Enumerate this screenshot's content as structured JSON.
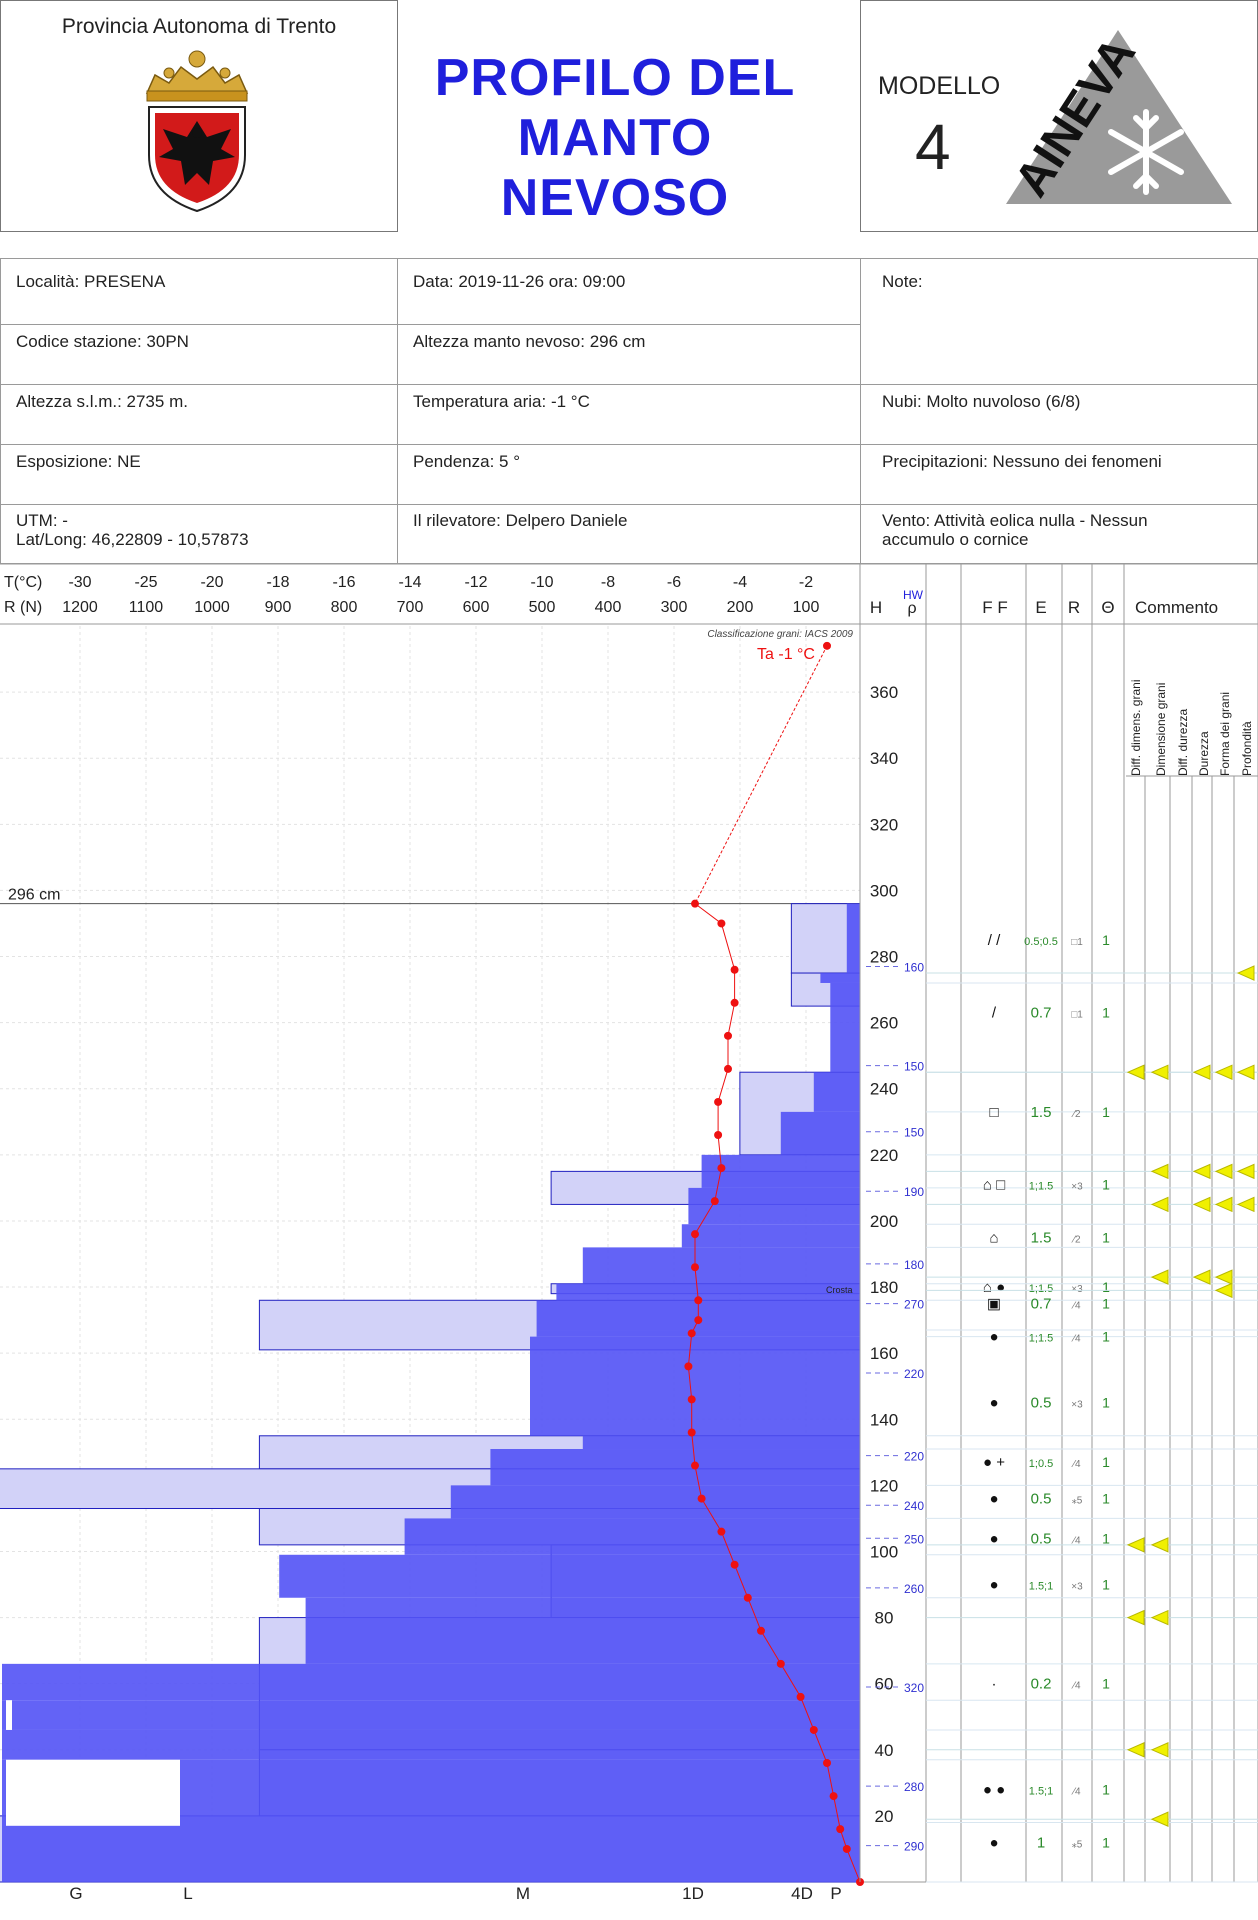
{
  "header": {
    "province": "Provincia Autonoma di Trento",
    "title_line1": "PROFILO DEL",
    "title_line2": "MANTO NEVOSO",
    "model_label": "MODELLO",
    "model_number": "4",
    "logo_text": "AINEVA"
  },
  "info": {
    "location": "Località: PRESENA",
    "date": "Data: 2019-11-26   ora: 09:00",
    "notes": "Note:",
    "station": "Codice stazione: 30PN",
    "snow_depth": "Altezza manto nevoso: 296 cm",
    "altitude": "Altezza s.l.m.: 2735 m.",
    "air_temp": "Temperatura aria: -1 °C",
    "clouds": "Nubi: Molto nuvoloso (6/8)",
    "exposure": "Esposizione: NE",
    "slope": "Pendenza: 5 °",
    "precip": "Precipitazioni: Nessuno dei fenomeni",
    "utm": "UTM:  -",
    "latlong": "Lat/Long: 46,22809 - 10,57873",
    "observer": "Il rilevatore: Delpero Daniele",
    "wind_1": "Vento: Attività eolica nulla - Nessun",
    "wind_2": "accumulo o cornice"
  },
  "columns": {
    "t_label": "T(°C)",
    "r_label": "R (N)",
    "h": "H",
    "hw": "HW",
    "rho": "ρ",
    "ff": "F F",
    "e": "E",
    "r": "R",
    "theta": "Θ",
    "comment": "Commento",
    "flags": [
      "Diff. dimens. grani",
      "Dimensione grani",
      "Diff. durezza",
      "Durezza",
      "Forma dei grani",
      "Profondità"
    ]
  },
  "colors": {
    "accent": "#1f1fdc",
    "ram": "#5252f5",
    "hardness": "#d2d2f8",
    "temp": "#ee1111",
    "flag": "#f0f000"
  },
  "chart_data": {
    "type": "snow-profile",
    "classification": "Classificazione grani: IACS 2009",
    "air_temp_label": "Ta -1 °C",
    "snow_depth_label": "296 cm",
    "crust_label": "Crosta",
    "temp_ticks": [
      -30,
      -25,
      -20,
      -18,
      -16,
      -14,
      -12,
      -10,
      -8,
      -6,
      -4,
      -2
    ],
    "ram_ticks": [
      1200,
      1100,
      1000,
      900,
      800,
      700,
      600,
      500,
      400,
      300,
      200,
      100
    ],
    "height_ticks": [
      20,
      40,
      60,
      80,
      100,
      120,
      140,
      160,
      180,
      200,
      220,
      240,
      260,
      280,
      300,
      320,
      340,
      360
    ],
    "hardness_ticks": [
      "G",
      "L",
      "M",
      "1D",
      "4D",
      "P"
    ],
    "h_max": 380,
    "snow_depth_cm": 296,
    "temperature_profile": [
      {
        "h": 374,
        "t": -1
      },
      {
        "h": 296,
        "t": -5
      },
      {
        "h": 290,
        "t": -4.2
      },
      {
        "h": 276,
        "t": -3.8
      },
      {
        "h": 266,
        "t": -3.8
      },
      {
        "h": 256,
        "t": -4.0
      },
      {
        "h": 246,
        "t": -4.0
      },
      {
        "h": 236,
        "t": -4.3
      },
      {
        "h": 226,
        "t": -4.3
      },
      {
        "h": 216,
        "t": -4.2
      },
      {
        "h": 206,
        "t": -4.4
      },
      {
        "h": 196,
        "t": -5.0
      },
      {
        "h": 186,
        "t": -5.0
      },
      {
        "h": 176,
        "t": -4.9
      },
      {
        "h": 170,
        "t": -4.9
      },
      {
        "h": 166,
        "t": -5.1
      },
      {
        "h": 156,
        "t": -5.2
      },
      {
        "h": 146,
        "t": -5.1
      },
      {
        "h": 136,
        "t": -5.1
      },
      {
        "h": 126,
        "t": -5.0
      },
      {
        "h": 116,
        "t": -4.8
      },
      {
        "h": 106,
        "t": -4.2
      },
      {
        "h": 96,
        "t": -3.8
      },
      {
        "h": 86,
        "t": -3.4
      },
      {
        "h": 76,
        "t": -3.0
      },
      {
        "h": 66,
        "t": -2.4
      },
      {
        "h": 56,
        "t": -1.8
      },
      {
        "h": 46,
        "t": -1.4
      },
      {
        "h": 36,
        "t": -1.0
      },
      {
        "h": 26,
        "t": -0.8
      },
      {
        "h": 16,
        "t": -0.6
      },
      {
        "h": 10,
        "t": -0.4
      },
      {
        "h": 0,
        "t": 0
      }
    ],
    "ram_profile": [
      {
        "h_top": 296,
        "h_bottom": 275,
        "ram": 20
      },
      {
        "h_top": 275,
        "h_bottom": 272,
        "ram": 60
      },
      {
        "h_top": 272,
        "h_bottom": 245,
        "ram": 45
      },
      {
        "h_top": 245,
        "h_bottom": 233,
        "ram": 70
      },
      {
        "h_top": 233,
        "h_bottom": 220,
        "ram": 120
      },
      {
        "h_top": 220,
        "h_bottom": 210,
        "ram": 240
      },
      {
        "h_top": 210,
        "h_bottom": 199,
        "ram": 260
      },
      {
        "h_top": 199,
        "h_bottom": 192,
        "ram": 270
      },
      {
        "h_top": 192,
        "h_bottom": 181,
        "ram": 420
      },
      {
        "h_top": 181,
        "h_bottom": 176,
        "ram": 460
      },
      {
        "h_top": 176,
        "h_bottom": 167,
        "ram": 490
      },
      {
        "h_top": 167,
        "h_bottom": 165,
        "ram": 490
      },
      {
        "h_top": 165,
        "h_bottom": 135,
        "ram": 500
      },
      {
        "h_top": 135,
        "h_bottom": 131,
        "ram": 420
      },
      {
        "h_top": 131,
        "h_bottom": 120,
        "ram": 560
      },
      {
        "h_top": 120,
        "h_bottom": 110,
        "ram": 620
      },
      {
        "h_top": 110,
        "h_bottom": 99,
        "ram": 690
      },
      {
        "h_top": 99,
        "h_bottom": 86,
        "ram": 880
      },
      {
        "h_top": 86,
        "h_bottom": 66,
        "ram": 840
      },
      {
        "h_top": 66,
        "h_bottom": 55,
        "ram": 1300
      },
      {
        "h_top": 55,
        "h_bottom": 46,
        "ram": 1300
      },
      {
        "h_top": 46,
        "h_bottom": 37,
        "ram": 1300
      },
      {
        "h_top": 37,
        "h_bottom": 18,
        "ram": 1300
      },
      {
        "h_top": 18,
        "h_bottom": 0,
        "ram": 1300
      }
    ],
    "white_gaps": [
      {
        "h_top": 55,
        "h_bottom": 46
      },
      {
        "h_top": 37,
        "h_bottom": 17
      }
    ],
    "hardness_layers": [
      {
        "h_top": 296,
        "h_bottom": 275,
        "hand": 20
      },
      {
        "h_top": 275,
        "h_bottom": 265,
        "hand": 20
      },
      {
        "h_top": 245,
        "h_bottom": 220,
        "hand": 35
      },
      {
        "h_top": 215,
        "h_bottom": 205,
        "hand": 90
      },
      {
        "h_top": 181,
        "h_bottom": 178,
        "hand": 90
      },
      {
        "h_top": 176,
        "h_bottom": 161,
        "hand": 175
      },
      {
        "h_top": 135,
        "h_bottom": 125,
        "hand": 175
      },
      {
        "h_top": 125,
        "h_bottom": 113,
        "hand": 300
      },
      {
        "h_top": 113,
        "h_bottom": 102,
        "hand": 175
      },
      {
        "h_top": 102,
        "h_bottom": 80,
        "hand": 90
      },
      {
        "h_top": 80,
        "h_bottom": 40,
        "hand": 175
      },
      {
        "h_top": 40,
        "h_bottom": 20,
        "hand": 175
      },
      {
        "h_top": 20,
        "h_bottom": 0,
        "hand": 300
      }
    ],
    "density_markers": [
      {
        "h": 277,
        "rho": 160
      },
      {
        "h": 247,
        "rho": 150
      },
      {
        "h": 227,
        "rho": 150
      },
      {
        "h": 209,
        "rho": 190
      },
      {
        "h": 187,
        "rho": 180
      },
      {
        "h": 175,
        "rho": 270
      },
      {
        "h": 154,
        "rho": 220
      },
      {
        "h": 129,
        "rho": 220
      },
      {
        "h": 114,
        "rho": 240
      },
      {
        "h": 104,
        "rho": 250
      },
      {
        "h": 89,
        "rho": 260
      },
      {
        "h": 59,
        "rho": 320
      },
      {
        "h": 29,
        "rho": 280
      },
      {
        "h": 11,
        "rho": 290
      }
    ],
    "layers": [
      {
        "h": 285,
        "ff": "/  /",
        "e": "0.5;0.5",
        "r": "□1",
        "theta": "1"
      },
      {
        "h": 263,
        "ff": "/",
        "e": "0.7",
        "r": "□1",
        "theta": "1"
      },
      {
        "h": 233,
        "ff": "□",
        "e": "1.5",
        "r": "⁄2",
        "theta": "1"
      },
      {
        "h": 211,
        "ff": "⌂ □",
        "e": "1;1.5",
        "r": "×3",
        "theta": "1"
      },
      {
        "h": 195,
        "ff": "⌂",
        "e": "1.5",
        "r": "⁄2",
        "theta": "1"
      },
      {
        "h": 180,
        "ff": "⌂ ●",
        "e": "1;1.5",
        "r": "×3",
        "theta": "1"
      },
      {
        "h": 175,
        "ff": "▣",
        "e": "0.7",
        "r": "⁄4",
        "theta": "1"
      },
      {
        "h": 165,
        "ff": "●",
        "e": "1;1.5",
        "r": "⁄4",
        "theta": "1"
      },
      {
        "h": 145,
        "ff": "●",
        "e": "0.5",
        "r": "×3",
        "theta": "1"
      },
      {
        "h": 127,
        "ff": "● +",
        "e": "1;0.5",
        "r": "⁄4",
        "theta": "1"
      },
      {
        "h": 116,
        "ff": "●",
        "e": "0.5",
        "r": "⁎5",
        "theta": "1"
      },
      {
        "h": 104,
        "ff": "●",
        "e": "0.5",
        "r": "⁄4",
        "theta": "1"
      },
      {
        "h": 90,
        "ff": "●",
        "e": "1.5;1",
        "r": "×3",
        "theta": "1"
      },
      {
        "h": 60,
        "ff": "·",
        "e": "0.2",
        "r": "⁄4",
        "theta": "1"
      },
      {
        "h": 28,
        "ff": "● ●",
        "e": "1.5;1",
        "r": "⁄4",
        "theta": "1"
      },
      {
        "h": 12,
        "ff": "●",
        "e": "1",
        "r": "⁎5",
        "theta": "1"
      }
    ],
    "flag_rows": [
      {
        "h": 275,
        "cols": [
          5
        ]
      },
      {
        "h": 245,
        "cols": [
          0,
          1,
          3,
          4,
          5
        ]
      },
      {
        "h": 215,
        "cols": [
          1,
          3,
          4,
          5
        ]
      },
      {
        "h": 205,
        "cols": [
          1,
          3,
          4,
          5
        ]
      },
      {
        "h": 183,
        "cols": [
          1,
          3,
          4
        ]
      },
      {
        "h": 179,
        "cols": [
          4
        ]
      },
      {
        "h": 102,
        "cols": [
          0,
          1
        ]
      },
      {
        "h": 80,
        "cols": [
          0,
          1
        ]
      },
      {
        "h": 40,
        "cols": [
          0,
          1
        ]
      },
      {
        "h": 19,
        "cols": [
          1
        ]
      }
    ]
  }
}
